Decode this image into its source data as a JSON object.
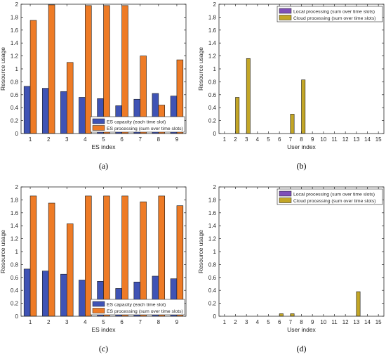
{
  "colors": {
    "blue": "#3f53b5",
    "orange": "#ee7b26",
    "olive": "#b9a330",
    "purple": "#7e4fb8",
    "gold": "#c3a626"
  },
  "chart_data": [
    {
      "type": "bar",
      "panel_label": "(a)",
      "xlabel": "ES index",
      "ylabel": "Resource usage",
      "categories": [
        "1",
        "2",
        "3",
        "4",
        "5",
        "6",
        "7",
        "8",
        "9"
      ],
      "ylim": [
        0,
        2
      ],
      "yticks": [
        "0",
        "0.2",
        "0.4",
        "0.6",
        "0.8",
        "1",
        "1.2",
        "1.4",
        "1.6",
        "1.8",
        "2"
      ],
      "grid": false,
      "legend_position": "bottom-right",
      "series": [
        {
          "name": "ES capacity (each time slot)",
          "color_key": "blue",
          "values": [
            0.73,
            0.7,
            0.65,
            0.56,
            0.54,
            0.43,
            0.53,
            0.62,
            0.58
          ]
        },
        {
          "name": "ES processing (sum over time slots)",
          "color_key": "orange",
          "values": [
            1.75,
            1.99,
            1.1,
            1.98,
            1.98,
            1.98,
            1.2,
            0.44,
            1.14
          ]
        }
      ]
    },
    {
      "type": "bar",
      "panel_label": "(b)",
      "xlabel": "User index",
      "ylabel": "Resource usage",
      "categories": [
        "1",
        "2",
        "3",
        "4",
        "5",
        "6",
        "7",
        "8",
        "9",
        "10",
        "11",
        "12",
        "13",
        "14",
        "15"
      ],
      "ylim": [
        0,
        2
      ],
      "yticks": [
        "0",
        "0.2",
        "0.4",
        "0.6",
        "0.8",
        "1",
        "1.2",
        "1.4",
        "1.6",
        "1.8",
        "2"
      ],
      "grid": false,
      "legend_position": "top-right",
      "series": [
        {
          "name": "Local processing (sum over time slots)",
          "color_key": "purple",
          "values": [
            0,
            0,
            0,
            0,
            0,
            0,
            0,
            0,
            0,
            0,
            0,
            0,
            0,
            0,
            0
          ]
        },
        {
          "name": "Cloud processing (sum over time slots)",
          "color_key": "gold",
          "values": [
            0,
            0.56,
            1.16,
            0,
            0,
            0,
            0.3,
            0.83,
            0,
            0,
            0,
            0,
            0,
            0,
            0
          ]
        }
      ]
    },
    {
      "type": "bar",
      "panel_label": "(c)",
      "xlabel": "ES index",
      "ylabel": "Resource usage",
      "categories": [
        "1",
        "2",
        "3",
        "4",
        "5",
        "6",
        "7",
        "8",
        "9"
      ],
      "ylim": [
        0,
        2
      ],
      "yticks": [
        "0",
        "0.2",
        "0.4",
        "0.6",
        "0.8",
        "1",
        "1.2",
        "1.4",
        "1.6",
        "1.8",
        "2"
      ],
      "grid": false,
      "legend_position": "bottom-right",
      "series": [
        {
          "name": "ES capacity (each time slot)",
          "color_key": "blue",
          "values": [
            0.73,
            0.7,
            0.65,
            0.56,
            0.54,
            0.43,
            0.53,
            0.62,
            0.58
          ]
        },
        {
          "name": "ES processing (sum over time slots)",
          "color_key": "orange",
          "values": [
            1.86,
            1.75,
            1.43,
            1.86,
            1.86,
            1.86,
            1.77,
            1.86,
            1.71
          ]
        }
      ]
    },
    {
      "type": "bar",
      "panel_label": "(d)",
      "xlabel": "User index",
      "ylabel": "Resource usage",
      "categories": [
        "1",
        "2",
        "3",
        "4",
        "5",
        "6",
        "7",
        "8",
        "9",
        "10",
        "11",
        "12",
        "13",
        "14",
        "15"
      ],
      "ylim": [
        0,
        2
      ],
      "yticks": [
        "0",
        "0.2",
        "0.4",
        "0.6",
        "0.8",
        "1",
        "1.2",
        "1.4",
        "1.6",
        "1.8",
        "2"
      ],
      "grid": false,
      "legend_position": "top-right",
      "series": [
        {
          "name": "Local processing (sum over time slots)",
          "color_key": "purple",
          "values": [
            0,
            0,
            0,
            0,
            0,
            0,
            0,
            0,
            0,
            0,
            0,
            0,
            0,
            0,
            0
          ]
        },
        {
          "name": "Cloud processing (sum over time slots)",
          "color_key": "gold",
          "values": [
            0,
            0,
            0,
            0,
            0,
            0.04,
            0.04,
            0,
            0,
            0,
            0,
            0,
            0.38,
            0,
            0
          ]
        }
      ]
    }
  ]
}
